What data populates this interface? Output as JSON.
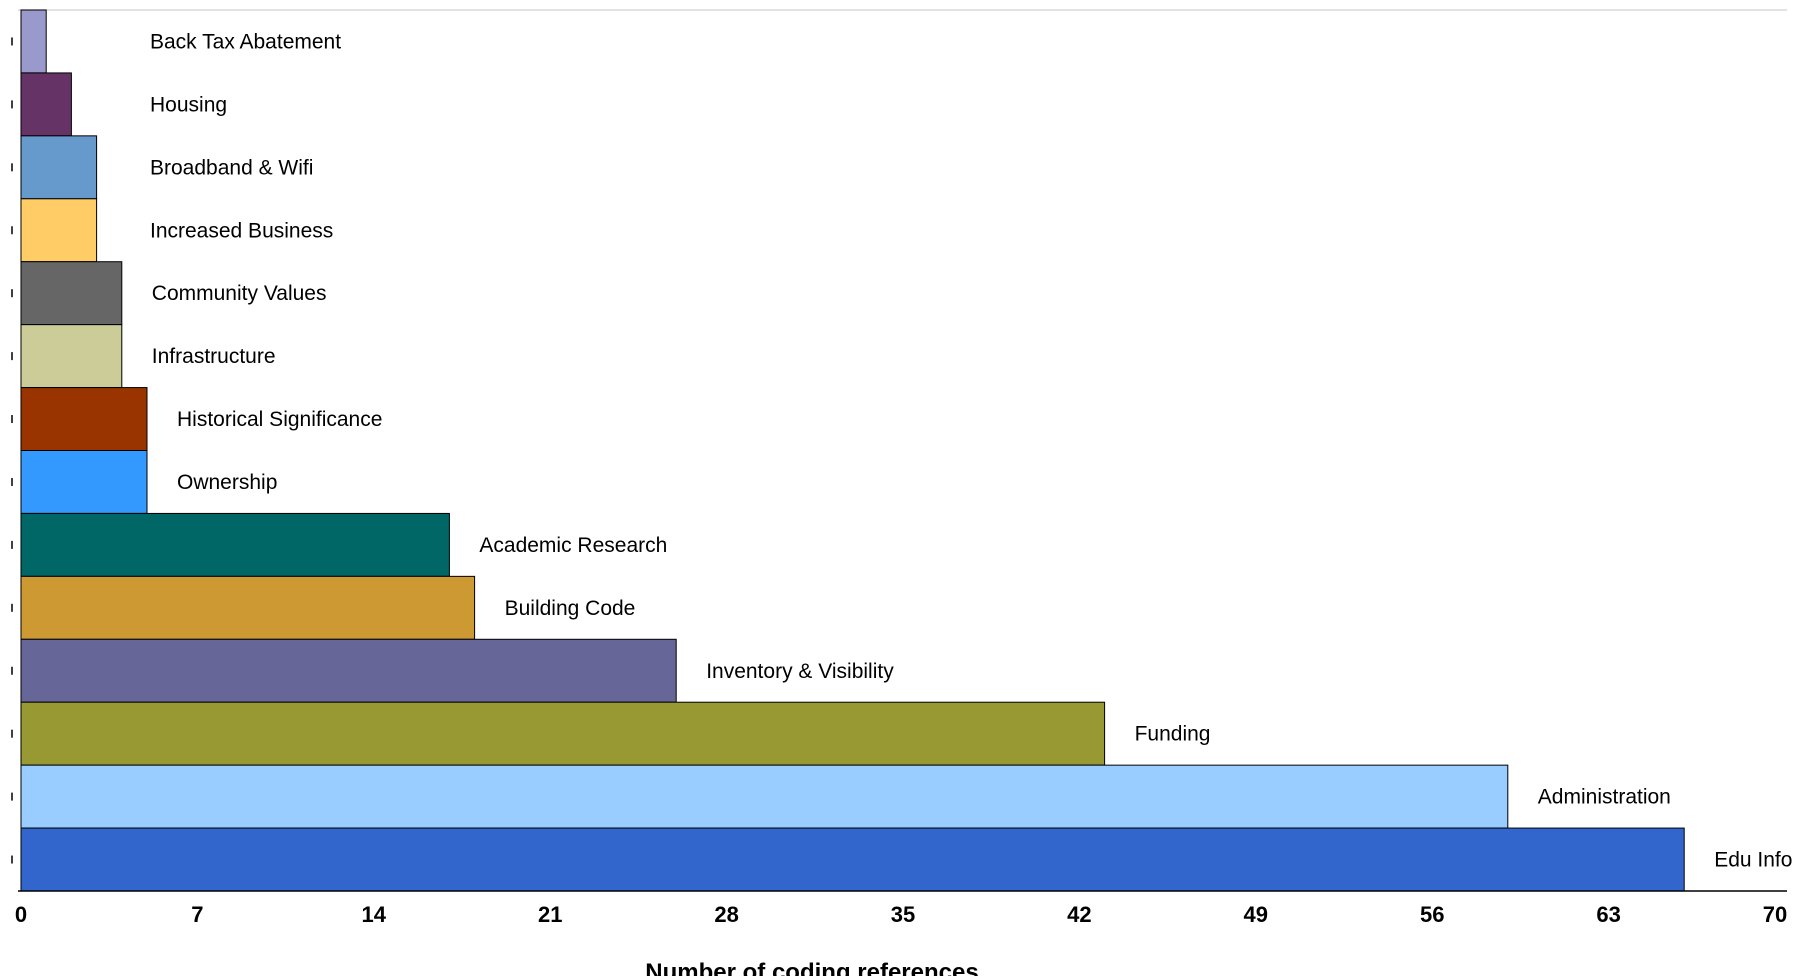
{
  "chart_data": {
    "type": "bar",
    "orientation": "horizontal",
    "xlabel": "Number of coding references",
    "xlim": [
      0,
      70
    ],
    "xticks": [
      0,
      7,
      14,
      21,
      28,
      35,
      42,
      49,
      56,
      63,
      70
    ],
    "grid": false,
    "legend": "none",
    "categories": [
      "Back Tax Abatement",
      "Housing",
      "Broadband & Wifi",
      "Increased Business",
      "Community Values",
      "Infrastructure",
      "Historical Significance",
      "Ownership",
      "Academic Research",
      "Building Code",
      "Inventory & Visibility",
      "Funding",
      "Administration",
      "Edu Info"
    ],
    "values": [
      1,
      2,
      3,
      3,
      4,
      4,
      5,
      5,
      17,
      18,
      26,
      43,
      59,
      66
    ],
    "colors": [
      "#9999cc",
      "#663366",
      "#6699cc",
      "#ffcc66",
      "#666666",
      "#cccc99",
      "#993300",
      "#3399ff",
      "#006666",
      "#cc9933",
      "#666699",
      "#999933",
      "#99ccff",
      "#3366cc"
    ]
  }
}
